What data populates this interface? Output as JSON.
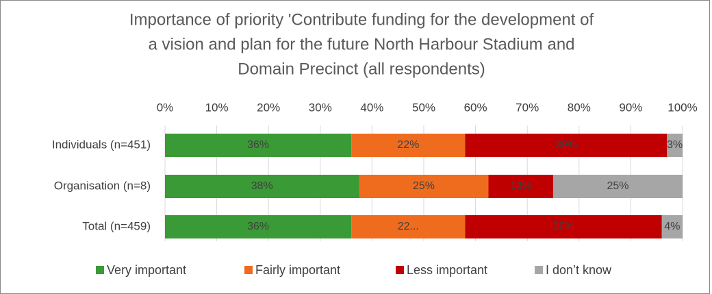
{
  "chart_data": {
    "type": "stacked_barh",
    "title": [
      "Importance of priority 'Contribute funding for the development of",
      "a vision and plan for the future North Harbour Stadium and",
      "Domain Precinct (all respondents)"
    ],
    "categories": [
      "Individuals (n=451)",
      "Organisation (n=8)",
      "Total (n=459)"
    ],
    "series": [
      {
        "name": "Very important",
        "color": "#3a9a35",
        "values": [
          36,
          37.5,
          36
        ],
        "value_labels": [
          "36%",
          "38%",
          "36%"
        ]
      },
      {
        "name": "Fairly important",
        "color": "#ef6c1f",
        "values": [
          22,
          25,
          22
        ],
        "value_labels": [
          "22%",
          "25%",
          "22..."
        ]
      },
      {
        "name": "Less important",
        "color": "#c00000",
        "values": [
          39,
          12.5,
          38
        ],
        "value_labels": [
          "39%",
          "13%",
          "38%"
        ]
      },
      {
        "name": "I don’t know",
        "color": "#a6a6a6",
        "values": [
          3,
          25,
          4
        ],
        "value_labels": [
          "3%",
          "25%",
          "4%"
        ]
      }
    ],
    "xlim": [
      0,
      100
    ],
    "xticks": [
      {
        "value": 0,
        "label": "0%"
      },
      {
        "value": 10,
        "label": "10%"
      },
      {
        "value": 20,
        "label": "20%"
      },
      {
        "value": 30,
        "label": "30%"
      },
      {
        "value": 40,
        "label": "40%"
      },
      {
        "value": 50,
        "label": "50%"
      },
      {
        "value": 60,
        "label": "60%"
      },
      {
        "value": 70,
        "label": "70%"
      },
      {
        "value": 80,
        "label": "80%"
      },
      {
        "value": 90,
        "label": "90%"
      },
      {
        "value": 100,
        "label": "100%"
      }
    ],
    "grid": true,
    "legend": "bottom"
  }
}
